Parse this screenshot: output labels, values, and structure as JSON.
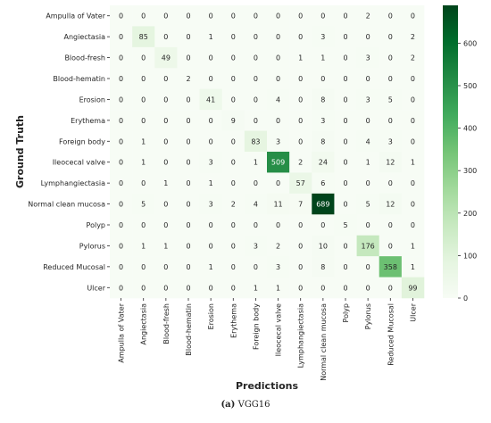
{
  "chart_data": {
    "type": "heatmap",
    "title": "",
    "xlabel": "Predictions",
    "ylabel": "Ground Truth",
    "categories": [
      "Ampulla of Vater",
      "Angiectasia",
      "Blood-fresh",
      "Blood-hematin",
      "Erosion",
      "Erythema",
      "Foreign body",
      "Ileocecal valve",
      "Lymphangiectasia",
      "Normal clean mucosa",
      "Polyp",
      "Pylorus",
      "Reduced Mucosal",
      "Ulcer"
    ],
    "matrix": [
      [
        0,
        0,
        0,
        0,
        0,
        0,
        0,
        0,
        0,
        0,
        0,
        2,
        0,
        0
      ],
      [
        0,
        85,
        0,
        0,
        1,
        0,
        0,
        0,
        0,
        3,
        0,
        0,
        0,
        2
      ],
      [
        0,
        0,
        49,
        0,
        0,
        0,
        0,
        0,
        1,
        1,
        0,
        3,
        0,
        2
      ],
      [
        0,
        0,
        0,
        2,
        0,
        0,
        0,
        0,
        0,
        0,
        0,
        0,
        0,
        0
      ],
      [
        0,
        0,
        0,
        0,
        41,
        0,
        0,
        4,
        0,
        8,
        0,
        3,
        5,
        0
      ],
      [
        0,
        0,
        0,
        0,
        0,
        9,
        0,
        0,
        0,
        3,
        0,
        0,
        0,
        0
      ],
      [
        0,
        1,
        0,
        0,
        0,
        0,
        83,
        3,
        0,
        8,
        0,
        4,
        3,
        0
      ],
      [
        0,
        1,
        0,
        0,
        3,
        0,
        1,
        509,
        2,
        24,
        0,
        1,
        12,
        1
      ],
      [
        0,
        0,
        1,
        0,
        1,
        0,
        0,
        0,
        57,
        6,
        0,
        0,
        0,
        0
      ],
      [
        0,
        5,
        0,
        0,
        3,
        2,
        4,
        11,
        7,
        689,
        0,
        5,
        12,
        0
      ],
      [
        0,
        0,
        0,
        0,
        0,
        0,
        0,
        0,
        0,
        0,
        5,
        0,
        0,
        0
      ],
      [
        0,
        1,
        1,
        0,
        0,
        0,
        3,
        2,
        0,
        10,
        0,
        176,
        0,
        1
      ],
      [
        0,
        0,
        0,
        0,
        1,
        0,
        0,
        3,
        0,
        8,
        0,
        0,
        358,
        1
      ],
      [
        0,
        0,
        0,
        0,
        0,
        0,
        1,
        1,
        0,
        0,
        0,
        0,
        0,
        99
      ]
    ],
    "colorbar": {
      "min": 0,
      "max": 689,
      "ticks": [
        0,
        100,
        200,
        300,
        400,
        500,
        600
      ],
      "colormap": [
        "#f7fcf5",
        "#e5f5e0",
        "#c7e9c0",
        "#a1d99b",
        "#74c476",
        "#41ab5d",
        "#238b45",
        "#006d2c",
        "#00441b"
      ]
    },
    "text_dark": "#262626",
    "text_light": "#ffffff"
  },
  "caption": {
    "label": "(a)",
    "text": "VGG16"
  }
}
